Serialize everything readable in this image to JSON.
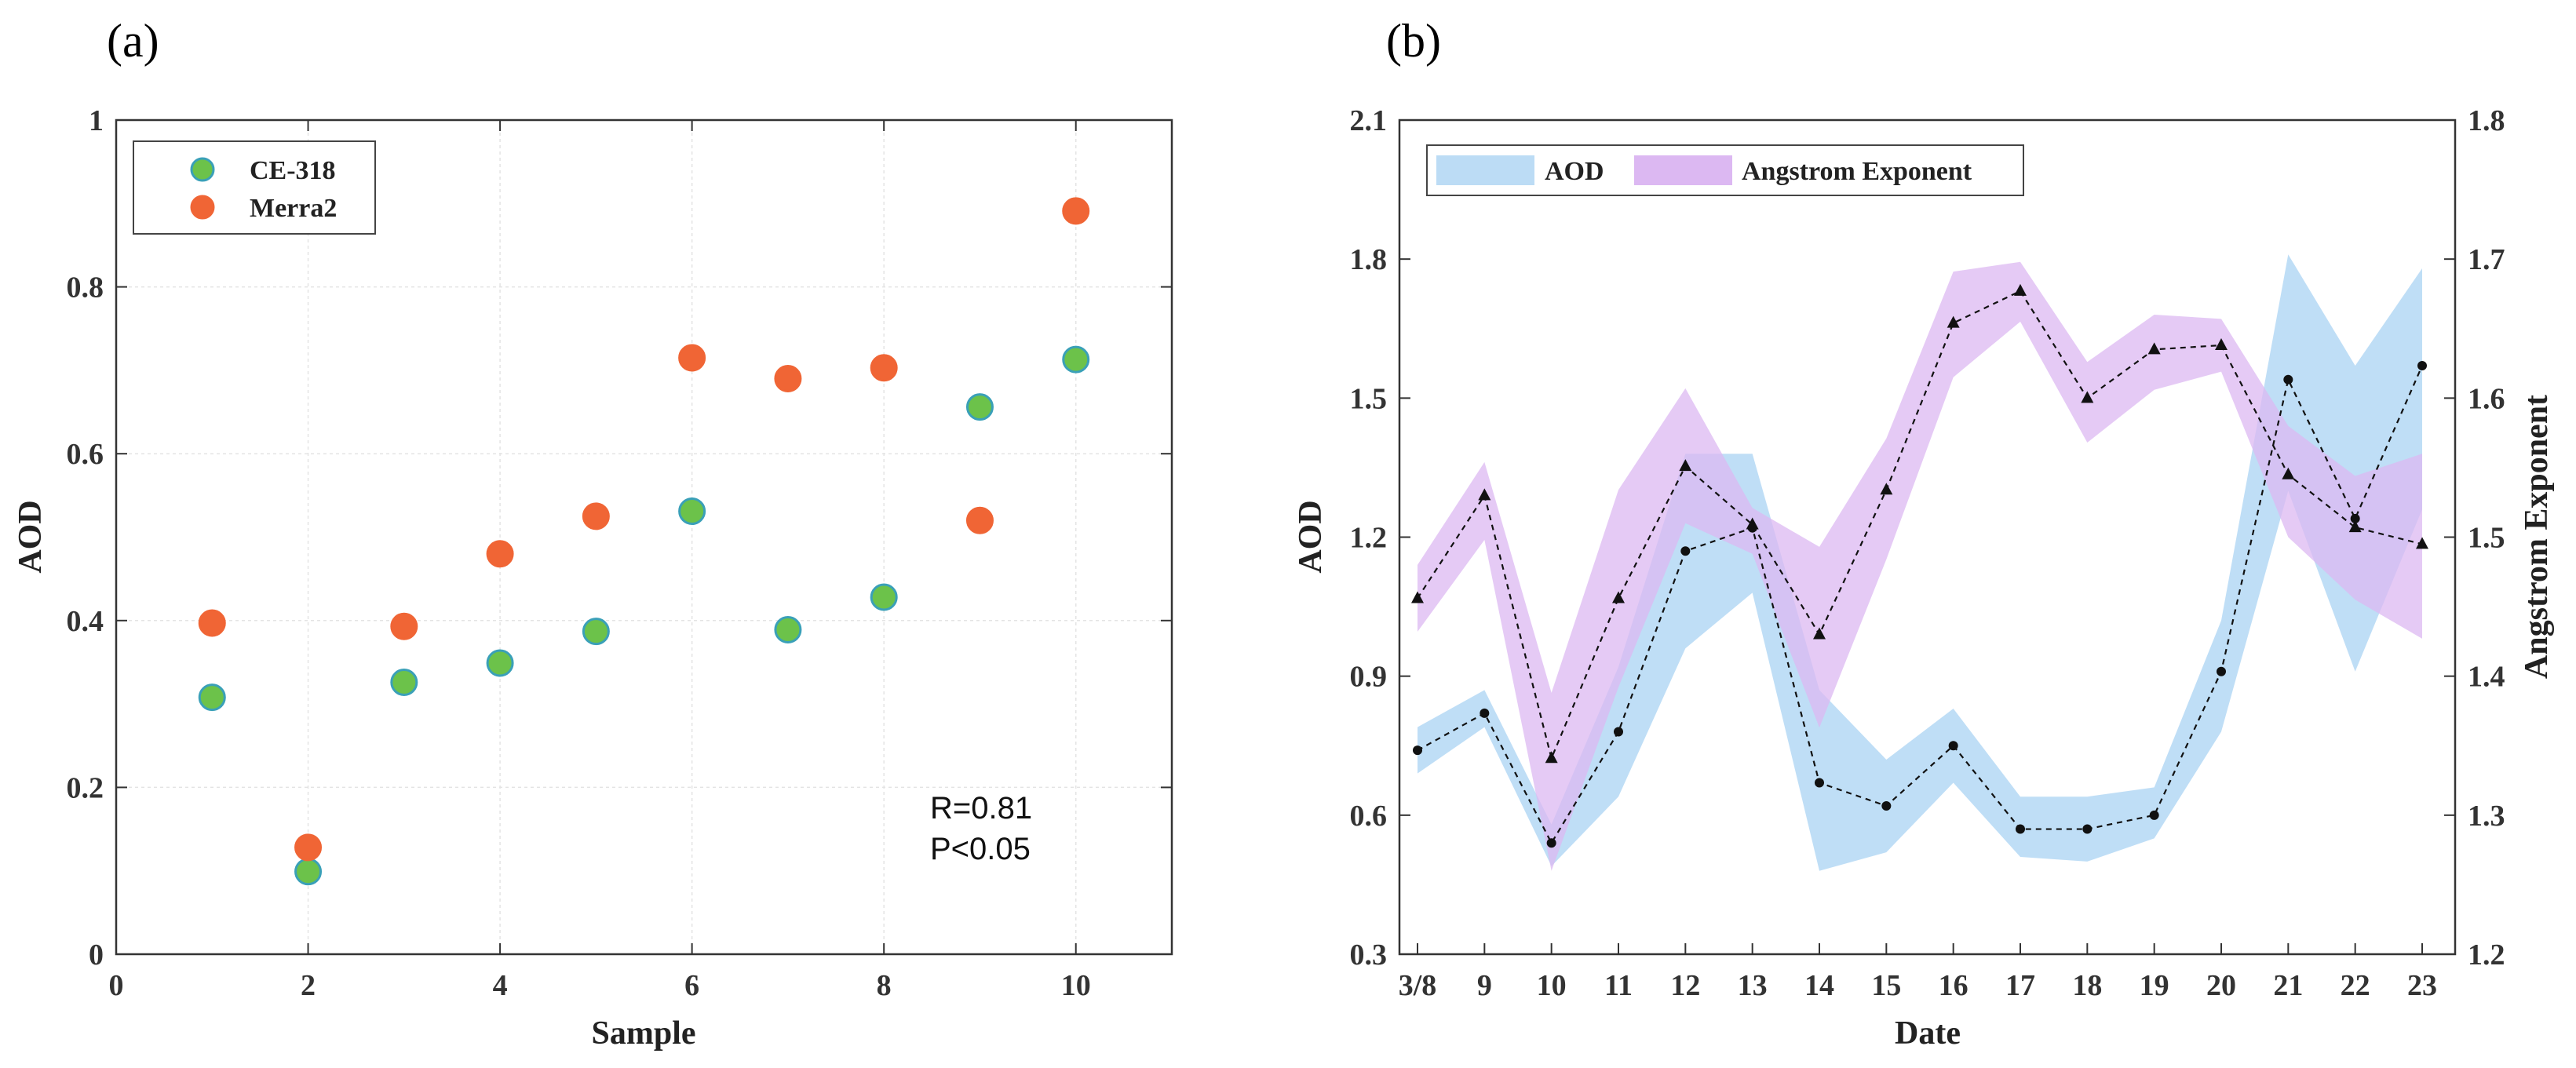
{
  "figure": {
    "panels": [
      "(a)",
      "(b)"
    ]
  },
  "chart_data": [
    {
      "type": "scatter",
      "panel_label": "(a)",
      "xlabel": "Sample",
      "ylabel": "AOD",
      "xlim": [
        0,
        11
      ],
      "ylim": [
        0,
        1
      ],
      "xticks": [
        0,
        2,
        4,
        6,
        8,
        10
      ],
      "yticks": [
        0,
        0.2,
        0.4,
        0.6,
        0.8,
        1
      ],
      "ytick_labels": [
        "0",
        "0.2",
        "0.4",
        "0.6",
        "0.8",
        "1"
      ],
      "grid": true,
      "legend_position": "top-left",
      "x": [
        1,
        2,
        3,
        4,
        5,
        6,
        7,
        8,
        9,
        10
      ],
      "series": [
        {
          "name": "CE-318",
          "color": "#6cc24a",
          "edge_color": "#3aa0b8",
          "values": [
            0.308,
            0.099,
            0.326,
            0.349,
            0.387,
            0.531,
            0.389,
            0.428,
            0.656,
            0.713
          ]
        },
        {
          "name": "Merra2",
          "color": "#f06535",
          "edge_color": "#f06535",
          "values": [
            0.397,
            0.128,
            0.393,
            0.48,
            0.525,
            0.715,
            0.69,
            0.703,
            0.52,
            0.891
          ]
        }
      ],
      "annotations": [
        "R=0.81",
        "P<0.05"
      ]
    },
    {
      "type": "line",
      "panel_label": "(b)",
      "xlabel": "Date",
      "ylabel": "AOD",
      "y2label": "Angstrom Exponent",
      "categories": [
        "3/8",
        "9",
        "10",
        "11",
        "12",
        "13",
        "14",
        "15",
        "16",
        "17",
        "18",
        "19",
        "20",
        "21",
        "22",
        "23"
      ],
      "ylim": [
        0.3,
        2.1
      ],
      "yticks": [
        0.3,
        0.6,
        0.9,
        1.2,
        1.5,
        1.8,
        2.1
      ],
      "ytick_labels": [
        "0.3",
        "0.6",
        "0.9",
        "1.2",
        "1.5",
        "1.8",
        "2.1"
      ],
      "y2lim": [
        1.2,
        1.8
      ],
      "y2ticks": [
        1.2,
        1.3,
        1.4,
        1.5,
        1.6,
        1.7,
        1.8
      ],
      "y2tick_labels": [
        "1.2",
        "1.3",
        "1.4",
        "1.5",
        "1.6",
        "1.7",
        "1.8"
      ],
      "grid": false,
      "legend_position": "top-left",
      "series": [
        {
          "name": "AOD",
          "axis": "left",
          "marker": "circle",
          "color": "#bcdcf5",
          "values": [
            0.74,
            0.82,
            0.54,
            0.78,
            1.17,
            1.22,
            0.67,
            0.62,
            0.75,
            0.57,
            0.57,
            0.6,
            0.91,
            1.54,
            1.24,
            1.57
          ],
          "band_lower": [
            0.69,
            0.79,
            0.49,
            0.64,
            0.96,
            1.08,
            0.48,
            0.52,
            0.67,
            0.51,
            0.5,
            0.55,
            0.78,
            1.3,
            0.91,
            1.26
          ],
          "band_upper": [
            0.79,
            0.87,
            0.58,
            0.92,
            1.38,
            1.38,
            0.87,
            0.72,
            0.83,
            0.64,
            0.64,
            0.66,
            1.02,
            1.81,
            1.57,
            1.78
          ]
        },
        {
          "name": "Angstrom Exponent",
          "axis": "right",
          "marker": "triangle",
          "color": "#dcb8f2",
          "values": [
            1.456,
            1.53,
            1.341,
            1.456,
            1.551,
            1.509,
            1.43,
            1.534,
            1.654,
            1.677,
            1.6,
            1.635,
            1.638,
            1.545,
            1.507,
            1.495
          ],
          "band_lower": [
            1.432,
            1.498,
            1.26,
            1.392,
            1.51,
            1.488,
            1.363,
            1.484,
            1.615,
            1.655,
            1.568,
            1.606,
            1.619,
            1.5,
            1.455,
            1.427
          ],
          "band_upper": [
            1.48,
            1.554,
            1.388,
            1.534,
            1.607,
            1.521,
            1.493,
            1.571,
            1.691,
            1.698,
            1.626,
            1.66,
            1.657,
            1.58,
            1.544,
            1.56
          ]
        }
      ]
    }
  ]
}
